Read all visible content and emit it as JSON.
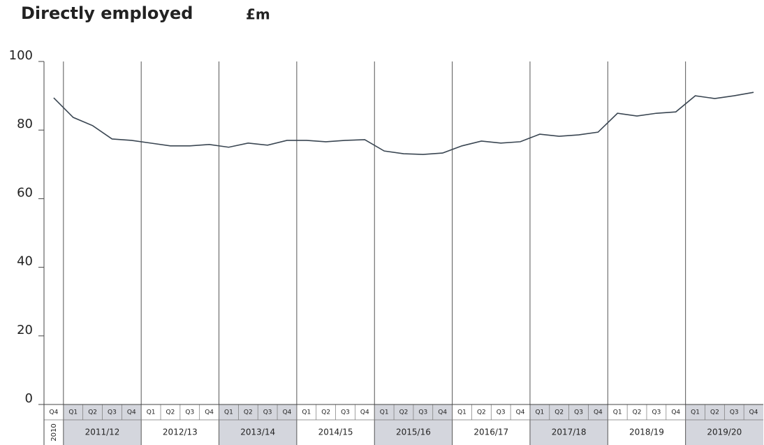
{
  "chart_data": {
    "type": "line",
    "title": "Directly employed",
    "unit": "£m",
    "categories": [
      "Q4",
      "Q1",
      "Q2",
      "Q3",
      "Q4",
      "Q1",
      "Q2",
      "Q3",
      "Q4",
      "Q1",
      "Q2",
      "Q3",
      "Q4",
      "Q1",
      "Q2",
      "Q3",
      "Q4",
      "Q1",
      "Q2",
      "Q3",
      "Q4",
      "Q1",
      "Q2",
      "Q3",
      "Q4",
      "Q1",
      "Q2",
      "Q3",
      "Q4",
      "Q1",
      "Q2",
      "Q3",
      "Q4",
      "Q1",
      "Q2",
      "Q3",
      "Q4"
    ],
    "year_groups": [
      "2010",
      "2011/12",
      "2012/13",
      "2013/14",
      "2014/15",
      "2015/16",
      "2016/17",
      "2017/18",
      "2018/19",
      "2019/20"
    ],
    "values": [
      89.4,
      83.7,
      81.3,
      77.4,
      77.0,
      76.2,
      75.4,
      75.4,
      75.8,
      75.0,
      76.2,
      75.6,
      77.0,
      77.0,
      76.6,
      77.0,
      77.2,
      73.9,
      73.1,
      72.9,
      73.3,
      75.4,
      76.8,
      76.2,
      76.6,
      78.8,
      78.2,
      78.6,
      79.4,
      84.9,
      84.1,
      84.9,
      85.3,
      90.0,
      89.2,
      90.0,
      91.0
    ],
    "color": "#3a4652",
    "ylim": [
      0,
      100
    ],
    "yticks": [
      0,
      20,
      40,
      60,
      80,
      100
    ],
    "grid": false
  }
}
